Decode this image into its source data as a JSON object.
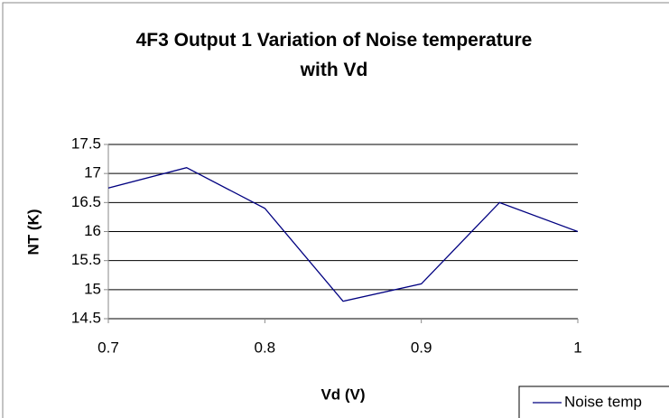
{
  "chart_data": {
    "type": "line",
    "title": "4F3 Output 1 Variation of Noise temperature with Vd",
    "x_label": "Vd (V)",
    "y_label": "NT (K)",
    "x": [
      0.7,
      0.75,
      0.8,
      0.85,
      0.9,
      0.95,
      1
    ],
    "series": [
      {
        "name": "Noise temp",
        "color": "#000080",
        "values": [
          16.75,
          17.1,
          16.4,
          14.8,
          15.1,
          16.5,
          16.0
        ]
      }
    ],
    "xlim": [
      0.7,
      1
    ],
    "xticks": [
      0.7,
      0.8,
      0.9,
      1
    ],
    "ylim": [
      14.5,
      17.5
    ],
    "yticks": [
      14.5,
      15,
      15.5,
      16,
      16.5,
      17,
      17.5
    ],
    "grid": true,
    "legend": "bottom-right"
  }
}
